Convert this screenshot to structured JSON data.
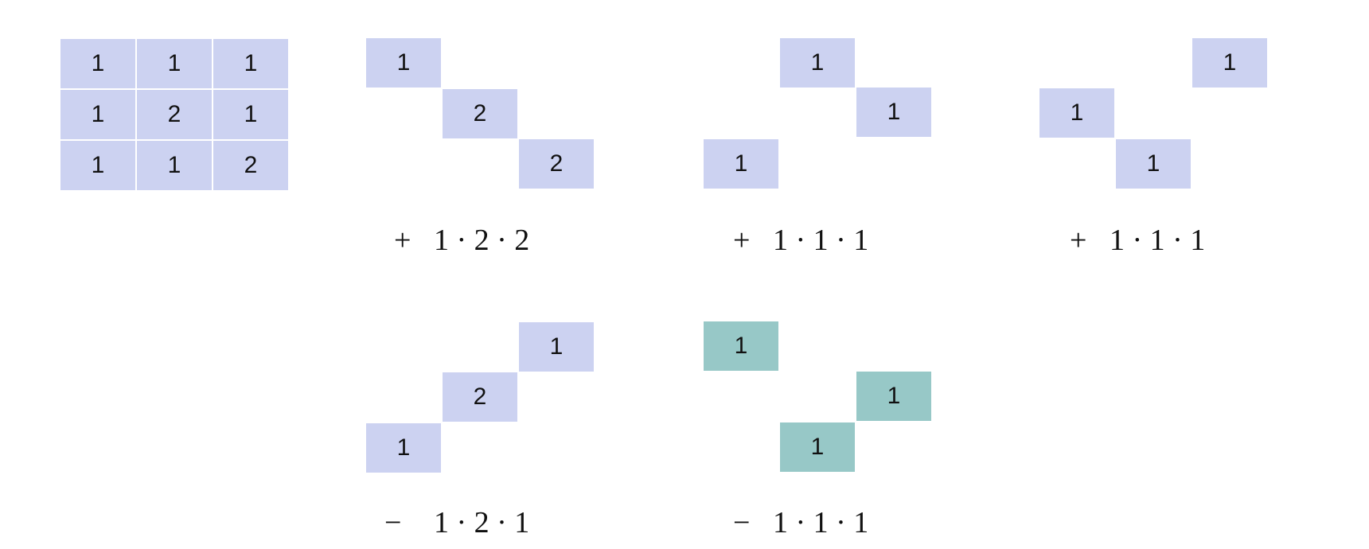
{
  "matrix": {
    "rows": [
      [
        "1",
        "1",
        "1"
      ],
      [
        "1",
        "2",
        "1"
      ],
      [
        "1",
        "1",
        "2"
      ]
    ],
    "cell_color": "#ccd2f1"
  },
  "terms": [
    {
      "cells": [
        "1",
        "2",
        "2"
      ],
      "sign": "+",
      "expression": "1 · 2 · 2",
      "color": "#ccd2f1"
    },
    {
      "cells": [
        "1",
        "1",
        "1"
      ],
      "sign": "+",
      "expression": "1 · 1 · 1",
      "color": "#ccd2f1"
    },
    {
      "cells": [
        "1",
        "1",
        "1"
      ],
      "sign": "+",
      "expression": "1 · 1 · 1",
      "color": "#ccd2f1"
    },
    {
      "cells": [
        "1",
        "2",
        "1"
      ],
      "sign": "−",
      "expression": "1 · 2 · 1",
      "color": "#ccd2f1"
    },
    {
      "cells": [
        "1",
        "1",
        "1"
      ],
      "sign": "−",
      "expression": "1 · 1 · 1",
      "color": "#97c8c7"
    }
  ]
}
